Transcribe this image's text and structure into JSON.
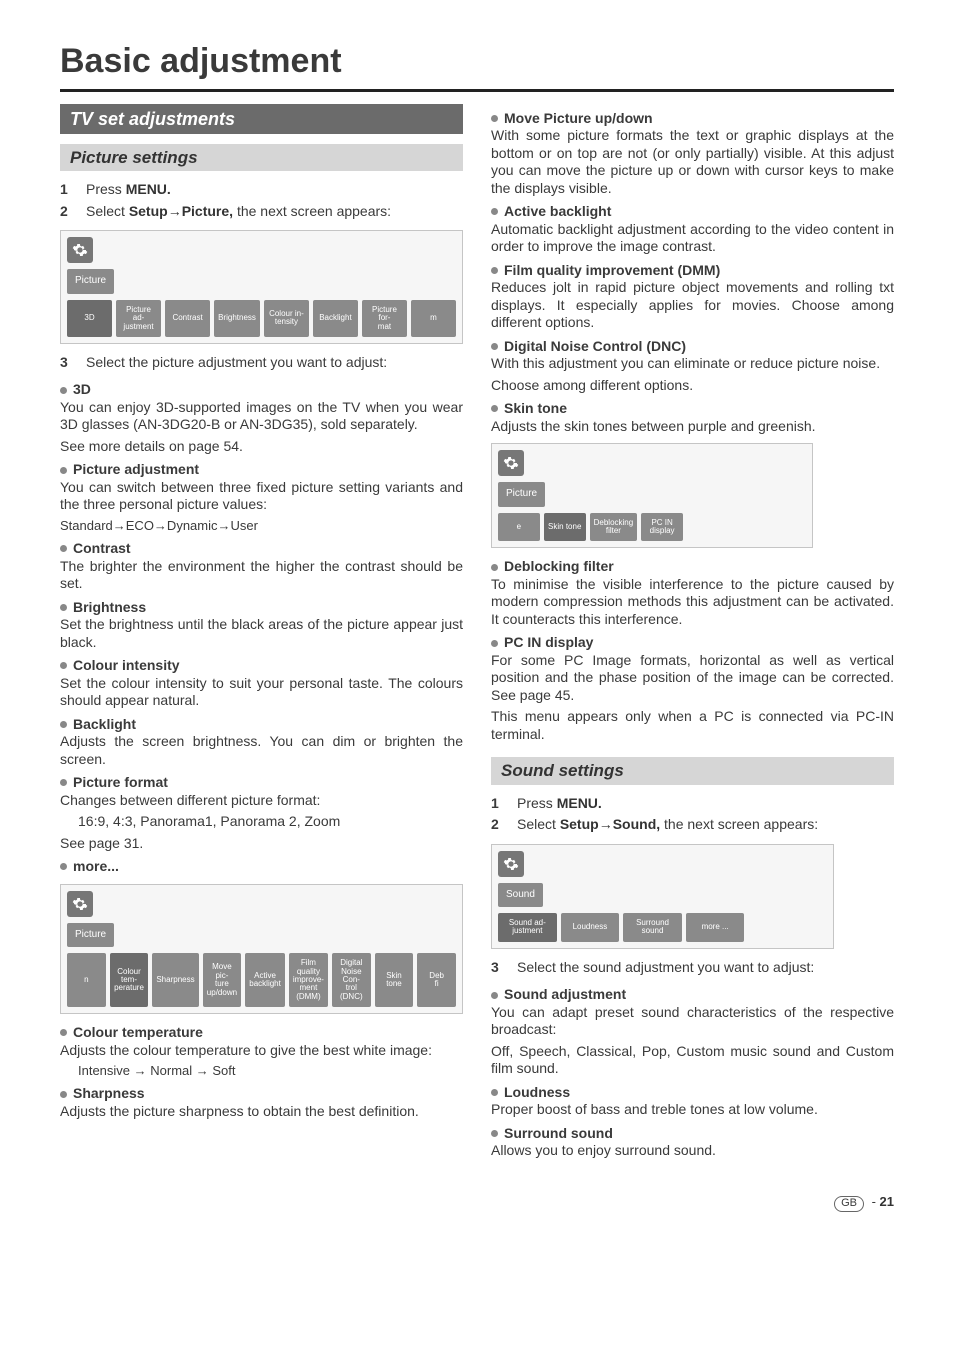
{
  "page_title": "Basic adjustment",
  "left": {
    "section": "TV set adjustments",
    "sub": "Picture settings",
    "steps": [
      {
        "n": "1",
        "html": "Press <b>MENU.</b>"
      },
      {
        "n": "2",
        "html": "Select <b>Setup→Picture,</b> the next screen appears:"
      }
    ],
    "ss1": {
      "label": "Picture",
      "items": [
        "3D",
        "Picture ad-\njustment",
        "Contrast",
        "Brightness",
        "Colour in-\ntensity",
        "Backlight",
        "Picture for-\nmat",
        "m"
      ]
    },
    "step3": "Select the picture adjustment you want to adjust:",
    "bullets": [
      {
        "h": "3D",
        "p": "You can enjoy 3D-supported images on the TV when you wear 3D glasses (AN-3DG20-B or AN-3DG35), sold separately.",
        "extra": "See more details on page 54."
      },
      {
        "h": "Picture adjustment",
        "p": "You can switch between three fixed picture setting variants and the three personal picture values:",
        "extra": "Standard→ECO→Dynamic→User",
        "small": true
      },
      {
        "h": "Contrast",
        "p": "The brighter the environment the higher the contrast should be set."
      },
      {
        "h": "Brightness",
        "p": "Set the brightness until the black areas of the picture appear just black."
      },
      {
        "h": "Colour intensity",
        "p": "Set the colour intensity to suit your personal taste. The colours should appear natural."
      },
      {
        "h": "Backlight",
        "p": "Adjusts the screen brightness. You can dim or brighten the screen."
      },
      {
        "h": "Picture format",
        "p": "Changes between different picture format:",
        "extra_indent": "16:9, 4:3, Panorama1, Panorama 2, Zoom",
        "extra2": "See page 31."
      },
      {
        "h": "more..."
      }
    ],
    "ss2": {
      "label": "Picture",
      "items": [
        "n",
        "Colour tem-\nperature",
        "Sharpness",
        "Move pic-\nture\nup/down",
        "Active\nbacklight",
        "Film quality\nimprove-\nment\n(DMM)",
        "Digital\nNoise Con-\ntrol (DNC)",
        "Skin tone",
        "Deb\nfi"
      ]
    },
    "bullets2": [
      {
        "h": "Colour temperature",
        "p": "Adjusts the colour temperature to give the best white image:",
        "extra_indent": "Intensive → Normal → Soft",
        "small": true
      },
      {
        "h": "Sharpness",
        "p": "Adjusts the picture sharpness to obtain the best definition."
      }
    ]
  },
  "right": {
    "bullets": [
      {
        "h": "Move Picture up/down",
        "p": "With some picture formats the text or graphic displays at the bottom or on top are not (or only partially) visible. At this adjust you can move the picture up or down with cursor keys to make the displays visible."
      },
      {
        "h": "Active backlight",
        "p": "Automatic backlight adjustment according to the video content in order to improve the image contrast."
      },
      {
        "h": "Film quality improvement (DMM)",
        "p": "Reduces jolt in rapid picture object movements and rolling txt displays. It especially applies for movies. Choose among different options."
      },
      {
        "h": "Digital Noise Control (DNC)",
        "p": "With this adjustment you can eliminate or reduce picture noise.",
        "extra": "Choose among different options."
      },
      {
        "h": "Skin tone",
        "p": "Adjusts the skin tones between purple and greenish."
      }
    ],
    "ss3": {
      "label": "Picture",
      "items": [
        "e",
        "Skin tone",
        "Deblocking\nfilter",
        "PC IN\ndisplay"
      ]
    },
    "bullets2": [
      {
        "h": "Deblocking filter",
        "p": "To minimise the visible interference to the picture caused by modern compression methods this adjustment can be activated. It counteracts this interference."
      },
      {
        "h": "PC IN display",
        "p": "For some PC Image formats, horizontal as well as vertical position and the phase position of the image can be corrected. See page 45.",
        "extra": "This menu appears only when a PC is connected via PC-IN terminal."
      }
    ],
    "sub": "Sound settings",
    "steps": [
      {
        "n": "1",
        "html": "Press <b>MENU.</b>"
      },
      {
        "n": "2",
        "html": "Select <b>Setup→Sound,</b> the next screen appears:"
      }
    ],
    "ss4": {
      "label": "Sound",
      "items": [
        "Sound ad-\njustment",
        "Loudness",
        "Surround\nsound",
        "more ..."
      ]
    },
    "step3": "Select the sound adjustment you want to adjust:",
    "bullets3": [
      {
        "h": "Sound adjustment",
        "p": "You can adapt preset sound characteristics of the respective broadcast:",
        "extra": "Off, Speech, Classical, Pop, Custom music sound and Custom film sound."
      },
      {
        "h": "Loudness",
        "p": "Proper boost of bass and treble tones at low volume."
      },
      {
        "h": "Surround sound",
        "p": "Allows you to enjoy surround sound."
      }
    ]
  },
  "footer": {
    "gb": "GB",
    "page": "21"
  }
}
